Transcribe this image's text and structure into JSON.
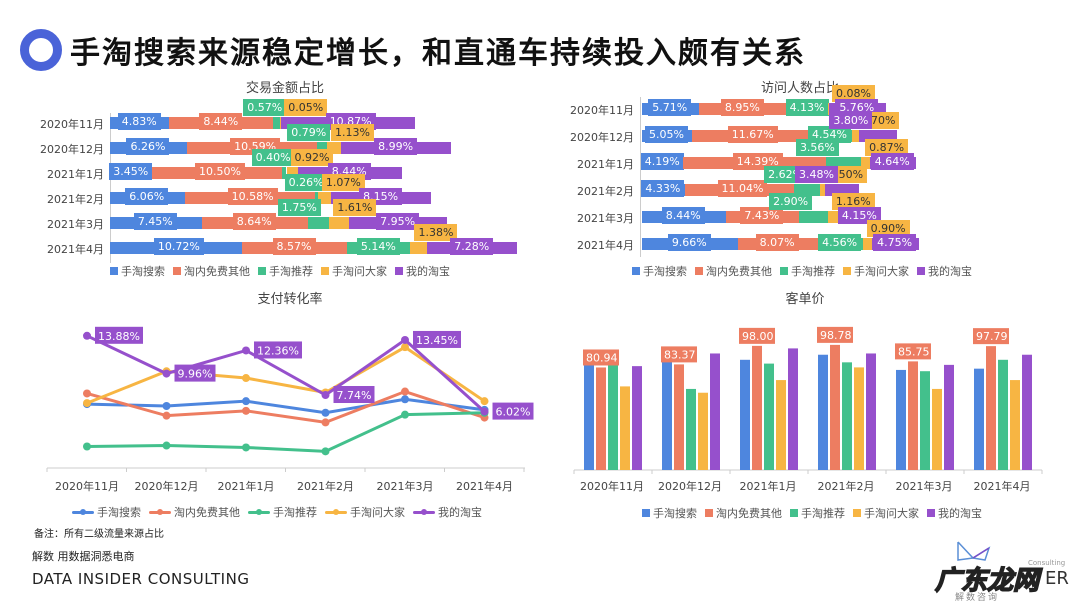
{
  "header": {
    "title": "手淘搜索来源稳定增长，和直通车持续投入颇有关系",
    "ring_color": "#4a63d8"
  },
  "colors": {
    "search": "#4e86de",
    "free_other": "#ed7d61",
    "recommend": "#43c08c",
    "ask": "#f7b543",
    "mytaobao": "#9650cc"
  },
  "series_names": [
    "手淘搜索",
    "淘内免费其他",
    "手淘推荐",
    "手淘问大家",
    "我的淘宝"
  ],
  "months": [
    "2020年11月",
    "2020年12月",
    "2021年1月",
    "2021年2月",
    "2021年3月",
    "2021年4月"
  ],
  "chart_data": [
    {
      "type": "bar",
      "orientation": "horizontal-stacked",
      "title": "交易金额占比",
      "categories": [
        "2020年11月",
        "2020年12月",
        "2021年1月",
        "2021年2月",
        "2021年3月",
        "2021年4月"
      ],
      "series": [
        {
          "name": "手淘搜索",
          "values": [
            4.83,
            6.26,
            3.45,
            6.06,
            7.45,
            10.72
          ],
          "labels": [
            "4.83%",
            "6.26%",
            "3.45%",
            "6.06%",
            "7.45%",
            "10.72%"
          ]
        },
        {
          "name": "淘内免费其他",
          "values": [
            8.44,
            10.59,
            10.5,
            10.58,
            8.64,
            8.57
          ],
          "labels": [
            "8.44%",
            "10.59%",
            "10.50%",
            "10.58%",
            "8.64%",
            "8.57%"
          ]
        },
        {
          "name": "手淘推荐",
          "values": [
            0.57,
            0.79,
            0.4,
            0.26,
            1.75,
            5.14
          ],
          "labels": [
            "0.57%",
            "0.79%",
            "0.40%",
            "0.26%",
            "1.75%",
            "5.14%"
          ]
        },
        {
          "name": "手淘问大家",
          "values": [
            0.05,
            1.13,
            0.92,
            1.07,
            1.61,
            1.38
          ],
          "labels": [
            "0.05%",
            "1.13%",
            "0.92%",
            "1.07%",
            "1.61%",
            "1.38%"
          ]
        },
        {
          "name": "我的淘宝",
          "values": [
            10.87,
            8.99,
            8.44,
            8.15,
            7.95,
            7.28
          ],
          "labels": [
            "10.87%",
            "8.99%",
            "8.44%",
            "8.15%",
            "7.95%",
            "7.28%"
          ]
        }
      ],
      "legend_position": "bottom"
    },
    {
      "type": "bar",
      "orientation": "horizontal-stacked",
      "title": "访问人数占比",
      "categories": [
        "2020年11月",
        "2020年12月",
        "2021年1月",
        "2021年2月",
        "2021年3月",
        "2021年4月"
      ],
      "series": [
        {
          "name": "手淘搜索",
          "values": [
            5.71,
            5.05,
            4.19,
            4.33,
            8.44,
            9.66
          ],
          "labels": [
            "5.71%",
            "5.05%",
            "4.19%",
            "4.33%",
            "8.44%",
            "9.66%"
          ]
        },
        {
          "name": "淘内免费其他",
          "values": [
            8.95,
            11.67,
            14.39,
            11.04,
            7.43,
            8.07
          ],
          "labels": [
            "8.95%",
            "11.67%",
            "14.39%",
            "11.04%",
            "7.43%",
            "8.07%"
          ]
        },
        {
          "name": "手淘推荐",
          "values": [
            4.13,
            4.54,
            3.56,
            2.62,
            2.9,
            4.56
          ],
          "labels": [
            "4.13%",
            "4.54%",
            "3.56%",
            "2.62%",
            "2.90%",
            "4.56%"
          ]
        },
        {
          "name": "手淘问大家",
          "values": [
            0.08,
            0.7,
            0.87,
            0.5,
            1.16,
            0.9
          ],
          "labels": [
            "0.08%",
            "0.70%",
            "0.87%",
            "0.50%",
            "1.16%",
            "0.90%"
          ]
        },
        {
          "name": "我的淘宝",
          "values": [
            5.76,
            3.8,
            4.64,
            3.48,
            4.15,
            4.75
          ],
          "labels": [
            "5.76%",
            "3.80%",
            "4.64%",
            "3.48%",
            "4.15%",
            "4.75%"
          ]
        }
      ],
      "legend_position": "bottom"
    },
    {
      "type": "line",
      "title": "支付转化率",
      "x": [
        "2020年11月",
        "2020年12月",
        "2021年1月",
        "2021年2月",
        "2021年3月",
        "2021年4月"
      ],
      "series": [
        {
          "name": "手淘搜索",
          "values": [
            6.8,
            6.6,
            7.1,
            5.9,
            7.3,
            6.2
          ]
        },
        {
          "name": "淘内免费其他",
          "values": [
            7.9,
            5.6,
            6.1,
            4.9,
            8.1,
            5.4
          ]
        },
        {
          "name": "手淘推荐",
          "values": [
            2.4,
            2.5,
            2.3,
            1.9,
            5.7,
            5.9
          ]
        },
        {
          "name": "手淘问大家",
          "values": [
            6.9,
            10.2,
            9.5,
            8.0,
            12.7,
            7.1
          ]
        },
        {
          "name": "我的淘宝",
          "values": [
            13.88,
            9.96,
            12.36,
            7.74,
            13.45,
            6.02
          ],
          "labels": [
            "13.88%",
            "9.96%",
            "12.36%",
            "7.74%",
            "13.45%",
            "6.02%"
          ]
        }
      ],
      "ylim": [
        1,
        15
      ],
      "grid": false,
      "legend_position": "bottom"
    },
    {
      "type": "bar",
      "title": "客单价",
      "categories": [
        "2020年11月",
        "2020年12月",
        "2021年1月",
        "2021年2月",
        "2021年3月",
        "2021年4月"
      ],
      "series": [
        {
          "name": "手淘搜索",
          "values": [
            84,
            86,
            87,
            91,
            79,
            80
          ]
        },
        {
          "name": "淘内免费其他",
          "values": [
            80.94,
            83.37,
            98.0,
            98.78,
            85.75,
            97.79
          ],
          "labels": [
            "80.94",
            "83.37",
            "98.00",
            "98.78",
            "85.75",
            "97.79"
          ]
        },
        {
          "name": "手淘推荐",
          "values": [
            85,
            64,
            84,
            85,
            78,
            87
          ]
        },
        {
          "name": "手淘问大家",
          "values": [
            66,
            61,
            71,
            81,
            64,
            71
          ]
        },
        {
          "name": "我的淘宝",
          "values": [
            82,
            92,
            96,
            92,
            83,
            91
          ]
        }
      ],
      "ylim": [
        0,
        105
      ],
      "legend_position": "bottom"
    }
  ],
  "footnote": "备注：所有二级流量来源占比",
  "brand": {
    "line1": "解数 用数据洞悉电商",
    "line2": "DATA INSIDER CONSULTING"
  },
  "watermark": {
    "text": "广东龙网",
    "suffix": "ER",
    "small": "解数咨询",
    "consulting": "Consulting"
  }
}
